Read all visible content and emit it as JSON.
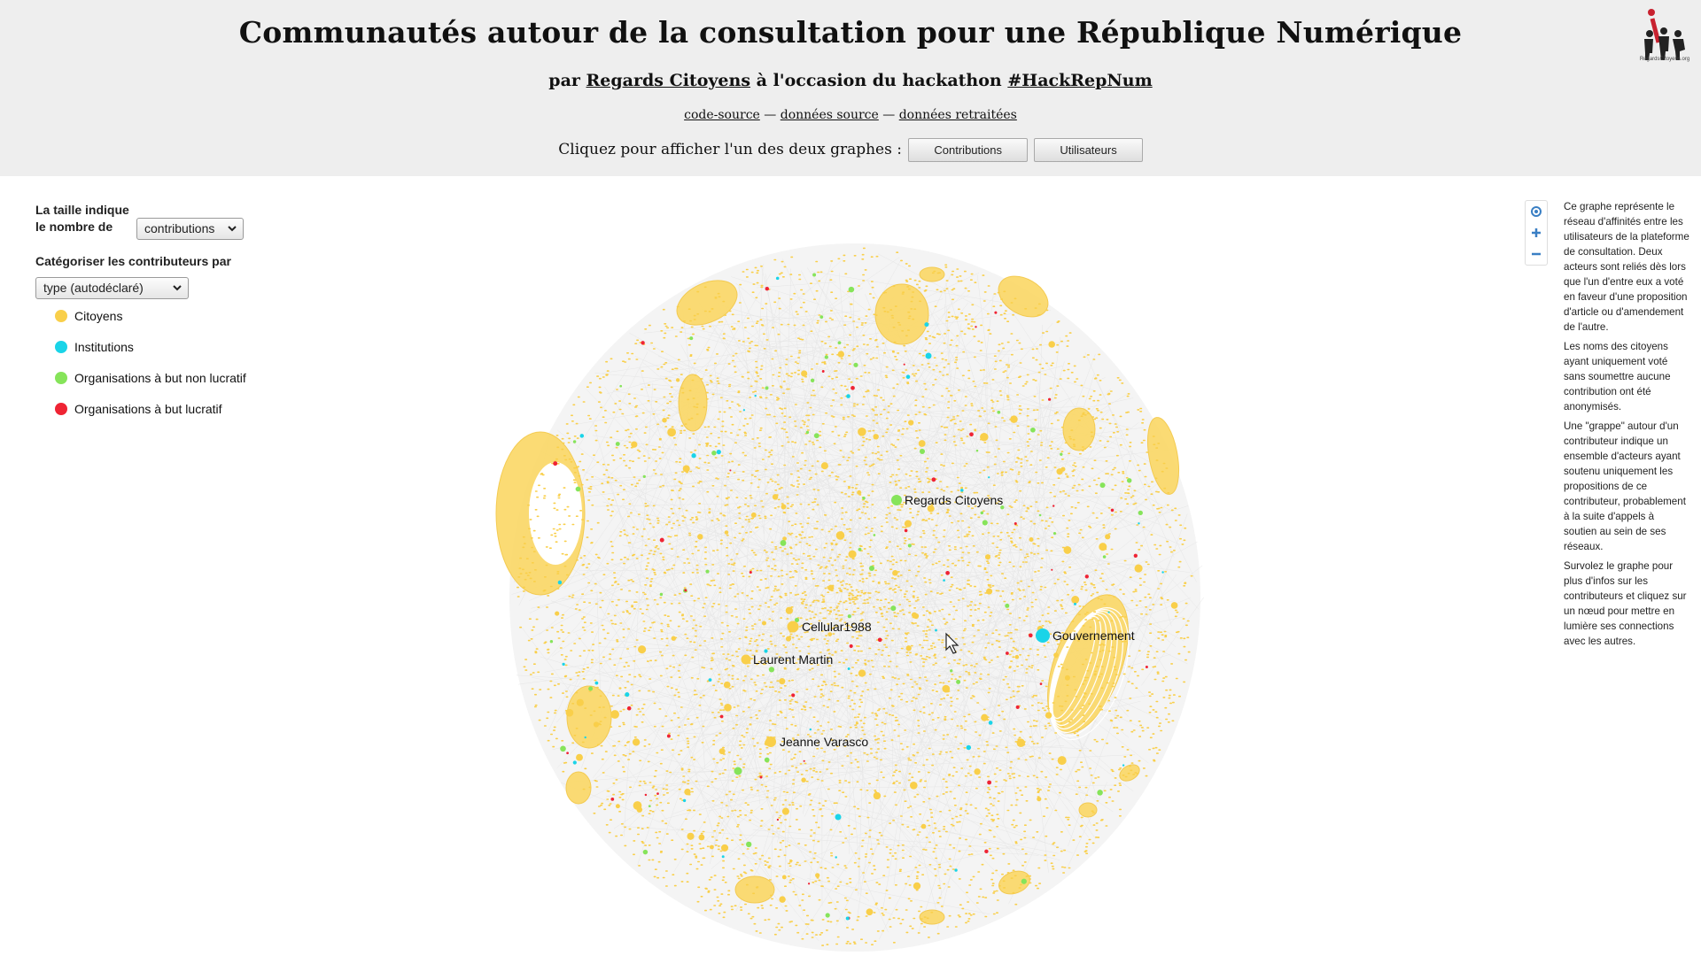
{
  "header": {
    "title": "Communautés autour de la consultation pour une République Numérique",
    "subtitle_prefix": "par ",
    "subtitle_org": "Regards Citoyens",
    "subtitle_middle": " à l'occasion du hackathon ",
    "subtitle_hashtag": "#HackRepNum",
    "links": [
      "code-source",
      "données source",
      "données retraitées"
    ],
    "link_separator": " — ",
    "chooser_text": "Cliquez pour afficher l'un des deux graphes :",
    "graph_buttons": [
      "Contributions",
      "Utilisateurs"
    ],
    "logo_text": "RegardsCitoyens.org"
  },
  "controls": {
    "size_label_line1": "La taille indique",
    "size_label_line2": "le nombre de",
    "size_select": "contributions",
    "category_label": "Catégoriser les contributeurs par",
    "category_select": "type (autodéclaré)"
  },
  "legend": [
    {
      "label": "Citoyens",
      "color": "#f9cf4a"
    },
    {
      "label": "Institutions",
      "color": "#1ad4e8"
    },
    {
      "label": "Organisations à but non lucratif",
      "color": "#86e45a"
    },
    {
      "label": "Organisations à but lucratif",
      "color": "#ef2434"
    }
  ],
  "graph": {
    "labeled_nodes": [
      {
        "label": "Regards Citoyens",
        "category": "Organisations à but non lucratif"
      },
      {
        "label": "Cellular1988",
        "category": "Citoyens"
      },
      {
        "label": "Laurent Martin",
        "category": "Citoyens"
      },
      {
        "label": "Gouvernement",
        "category": "Institutions"
      },
      {
        "label": "Jeanne Varasco",
        "category": "Citoyens"
      }
    ]
  },
  "zoom": {
    "icons": [
      "locate-icon",
      "zoom-in-icon",
      "zoom-out-icon"
    ]
  },
  "description": [
    "Ce graphe représente le réseau d'affinités entre les utilisateurs de la plateforme de consultation. Deux acteurs sont reliés dès lors que l'un d'entre eux a voté en faveur d'une proposition d'article ou d'amendement de l'autre.",
    "Les noms des citoyens ayant uniquement voté sans soumettre aucune contribution ont été anonymisés.",
    "Une \"grappe\" autour d'un contributeur indique un ensemble d'acteurs ayant soutenu uniquement les propositions de ce contributeur, probablement à la suite d'appels à soutien au sein de ses réseaux.",
    "Survolez le graphe pour plus d'infos sur les contributeurs et cliquez sur un nœud pour mettre en lumière ses connections avec les autres."
  ]
}
